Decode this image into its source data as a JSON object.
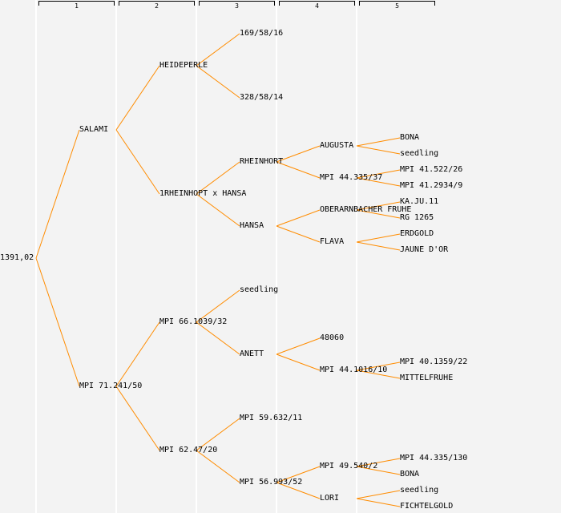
{
  "columns": [
    "1",
    "2",
    "3",
    "4",
    "5"
  ],
  "colors": {
    "edge": "#ff8c00",
    "background": "#f3f3f3"
  },
  "tree": {
    "name": "1391,02",
    "children": [
      {
        "name": "SALAMI",
        "children": [
          {
            "name": "HEIDEPERLE",
            "children": [
              {
                "name": "169/58/16"
              },
              {
                "name": "328/58/14"
              }
            ]
          },
          {
            "name": "1RHEINHOPT x HANSA",
            "children": [
              {
                "name": "RHEINHORT",
                "children": [
                  {
                    "name": "AUGUSTA",
                    "children": [
                      {
                        "name": "BONA"
                      },
                      {
                        "name": "seedling"
                      }
                    ]
                  },
                  {
                    "name": "MPI 44.335/37",
                    "children": [
                      {
                        "name": "MPI 41.522/26"
                      },
                      {
                        "name": "MPI 41.2934/9"
                      }
                    ]
                  }
                ]
              },
              {
                "name": "HANSA",
                "children": [
                  {
                    "name": "OBERARNBACHER FRUHE",
                    "children": [
                      {
                        "name": "KA.JU.11"
                      },
                      {
                        "name": "RG 1265"
                      }
                    ]
                  },
                  {
                    "name": "FLAVA",
                    "children": [
                      {
                        "name": "ERDGOLD"
                      },
                      {
                        "name": "JAUNE D'OR"
                      }
                    ]
                  }
                ]
              }
            ]
          }
        ]
      },
      {
        "name": "MPI 71.241/50",
        "children": [
          {
            "name": "MPI 66.1039/32",
            "children": [
              {
                "name": "seedling"
              },
              {
                "name": "ANETT",
                "children": [
                  {
                    "name": "48060"
                  },
                  {
                    "name": "MPI 44.1016/10",
                    "children": [
                      {
                        "name": "MPI 40.1359/22"
                      },
                      {
                        "name": "MITTELFRUHE"
                      }
                    ]
                  }
                ]
              }
            ]
          },
          {
            "name": "MPI 62.47/20",
            "children": [
              {
                "name": "MPI 59.632/11"
              },
              {
                "name": "MPI 56.993/52",
                "children": [
                  {
                    "name": "MPI 49.540/2",
                    "children": [
                      {
                        "name": "MPI 44.335/130"
                      },
                      {
                        "name": "BONA"
                      }
                    ]
                  },
                  {
                    "name": "LORI",
                    "children": [
                      {
                        "name": "seedling"
                      },
                      {
                        "name": "FICHTELGOLD"
                      }
                    ]
                  }
                ]
              }
            ]
          }
        ]
      }
    ]
  }
}
